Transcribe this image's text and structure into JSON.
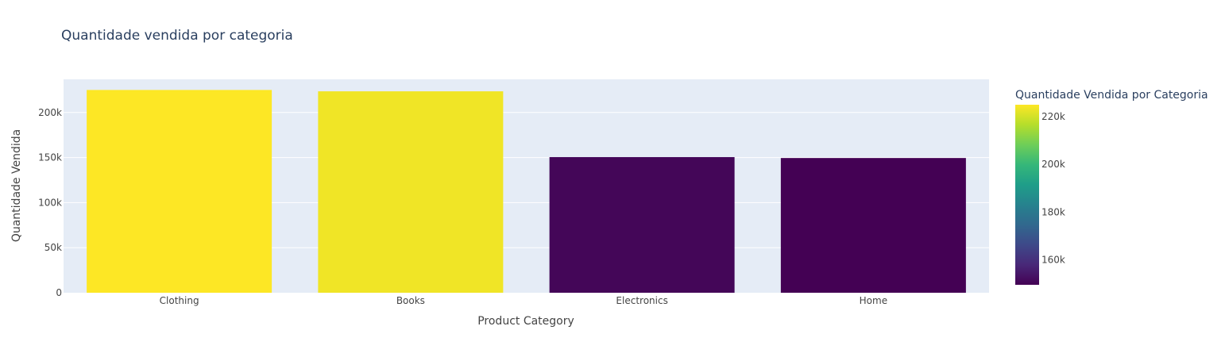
{
  "chart_data": {
    "type": "bar",
    "title": "Quantidade vendida por categoria",
    "xlabel": "Product Category",
    "ylabel": "Quantidade Vendida",
    "categories": [
      "Clothing",
      "Books",
      "Electronics",
      "Home"
    ],
    "values": [
      225000,
      223500,
      150500,
      149500
    ],
    "ylim": [
      0,
      236800
    ],
    "yticks": [
      {
        "value": 0,
        "label": "0"
      },
      {
        "value": 50000,
        "label": "50k"
      },
      {
        "value": 100000,
        "label": "100k"
      },
      {
        "value": 150000,
        "label": "150k"
      },
      {
        "value": 200000,
        "label": "200k"
      }
    ],
    "grid": true,
    "plot_bg": "#e5ecf6",
    "colorscale": "Viridis",
    "colorbar": {
      "title": "Quantidade Vendida por Categoria",
      "range": [
        149500,
        225000
      ],
      "ticks": [
        {
          "value": 160000,
          "label": "160k"
        },
        {
          "value": 180000,
          "label": "180k"
        },
        {
          "value": 200000,
          "label": "200k"
        },
        {
          "value": 220000,
          "label": "220k"
        }
      ],
      "placement": "right"
    }
  }
}
